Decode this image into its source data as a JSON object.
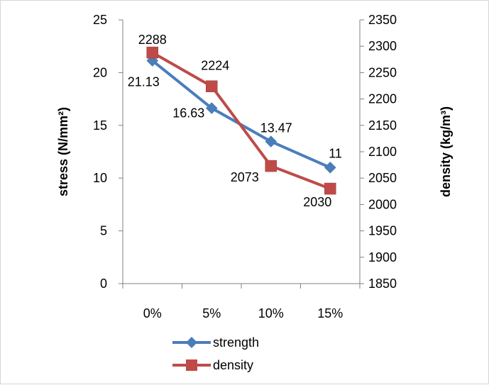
{
  "chart_data": {
    "type": "line",
    "categories": [
      "0%",
      "5%",
      "10%",
      "15%"
    ],
    "series": [
      {
        "name": "strength",
        "axis": "left",
        "color": "#4a7ebb",
        "marker": "diamond",
        "values": [
          21.13,
          16.63,
          13.47,
          11
        ],
        "labels": [
          "21.13",
          "16.63",
          "13.47",
          "11"
        ]
      },
      {
        "name": "density",
        "axis": "right",
        "color": "#be4b48",
        "marker": "square",
        "values": [
          2288,
          2224,
          2073,
          2030
        ],
        "labels": [
          "2288",
          "2224",
          "2073",
          "2030"
        ]
      }
    ],
    "y_left": {
      "label": "stress (N/mm²)",
      "lim": [
        0,
        25
      ],
      "ticks": [
        "0",
        "5",
        "10",
        "15",
        "20",
        "25"
      ]
    },
    "y_right": {
      "label": "density (kg/m³)",
      "lim": [
        1850,
        2350
      ],
      "ticks": [
        "1850",
        "1900",
        "1950",
        "2000",
        "2050",
        "2100",
        "2150",
        "2200",
        "2250",
        "2300",
        "2350"
      ]
    },
    "grid": false,
    "legend": "bottom"
  }
}
